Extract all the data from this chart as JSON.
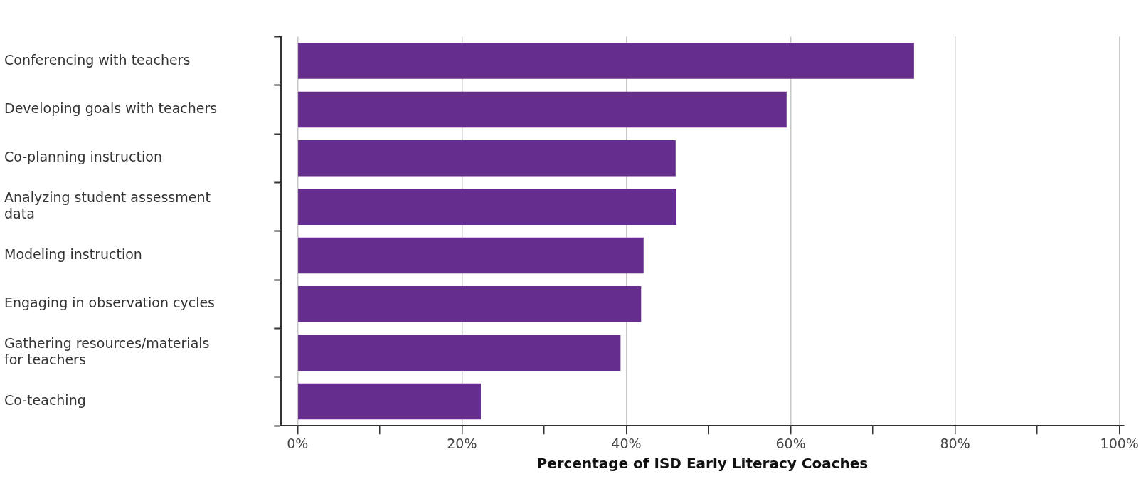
{
  "chart_data": {
    "type": "bar",
    "orientation": "horizontal",
    "xlabel": "Percentage of ISD Early Literacy Coaches",
    "categories": [
      "Conferencing with teachers",
      "Developing goals with teachers",
      "Co-planning instruction",
      "Analyzing student assessment data",
      "Modeling instruction",
      "Engaging in observation cycles",
      "Gathering resources/materials for teachers",
      "Co-teaching"
    ],
    "values": [
      75.0,
      59.5,
      46.0,
      46.1,
      42.1,
      41.8,
      39.3,
      22.3
    ],
    "color": "#652d8e",
    "xlim": [
      -2,
      100.5
    ],
    "xticks": [
      {
        "value": 0,
        "label": "0%"
      },
      {
        "value": 10,
        "label": null
      },
      {
        "value": 20,
        "label": "20%"
      },
      {
        "value": 30,
        "label": null
      },
      {
        "value": 40,
        "label": "40%"
      },
      {
        "value": 50,
        "label": null
      },
      {
        "value": 60,
        "label": "60%"
      },
      {
        "value": 70,
        "label": null
      },
      {
        "value": 80,
        "label": "80%"
      },
      {
        "value": 90,
        "label": null
      },
      {
        "value": 100,
        "label": "100%"
      }
    ],
    "grid": "x",
    "legend": false
  }
}
